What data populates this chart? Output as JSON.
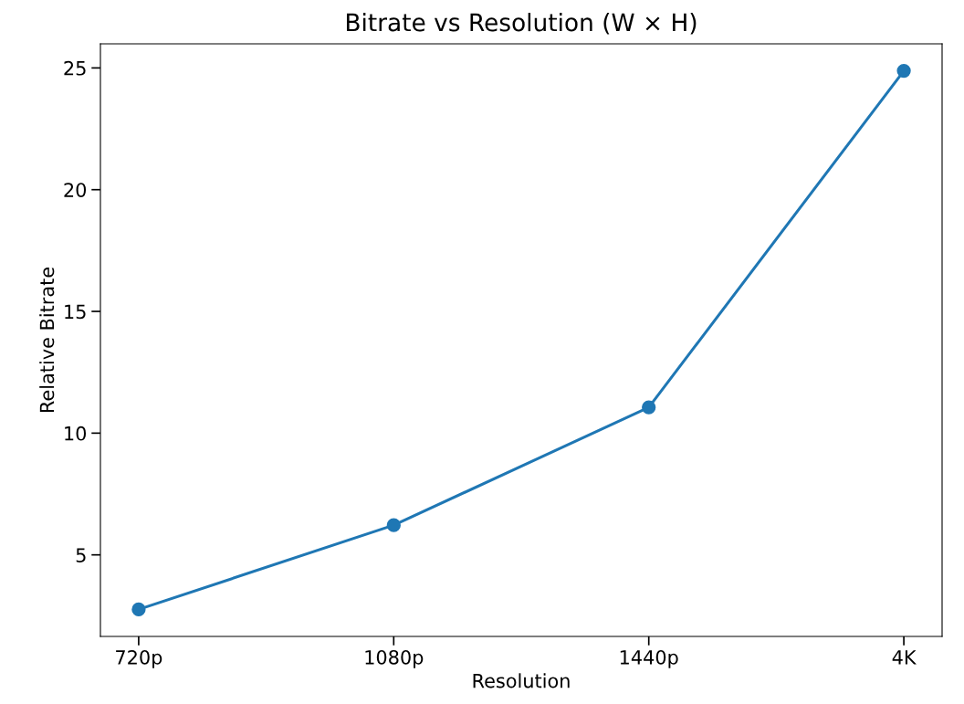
{
  "chart_data": {
    "type": "line",
    "title": "Bitrate vs Resolution (W × H)",
    "xlabel": "Resolution",
    "ylabel": "Relative Bitrate",
    "categories": [
      "720p",
      "1080p",
      "1440p",
      "4K"
    ],
    "series": [
      {
        "color": "#1f77b4",
        "values": [
          2.76,
          6.22,
          11.06,
          24.88
        ]
      }
    ],
    "ylim": [
      1.65,
      25.99
    ],
    "yticks": [
      5,
      10,
      15,
      20,
      25
    ],
    "marker": "circle",
    "line_style": "solid",
    "grid": false
  }
}
